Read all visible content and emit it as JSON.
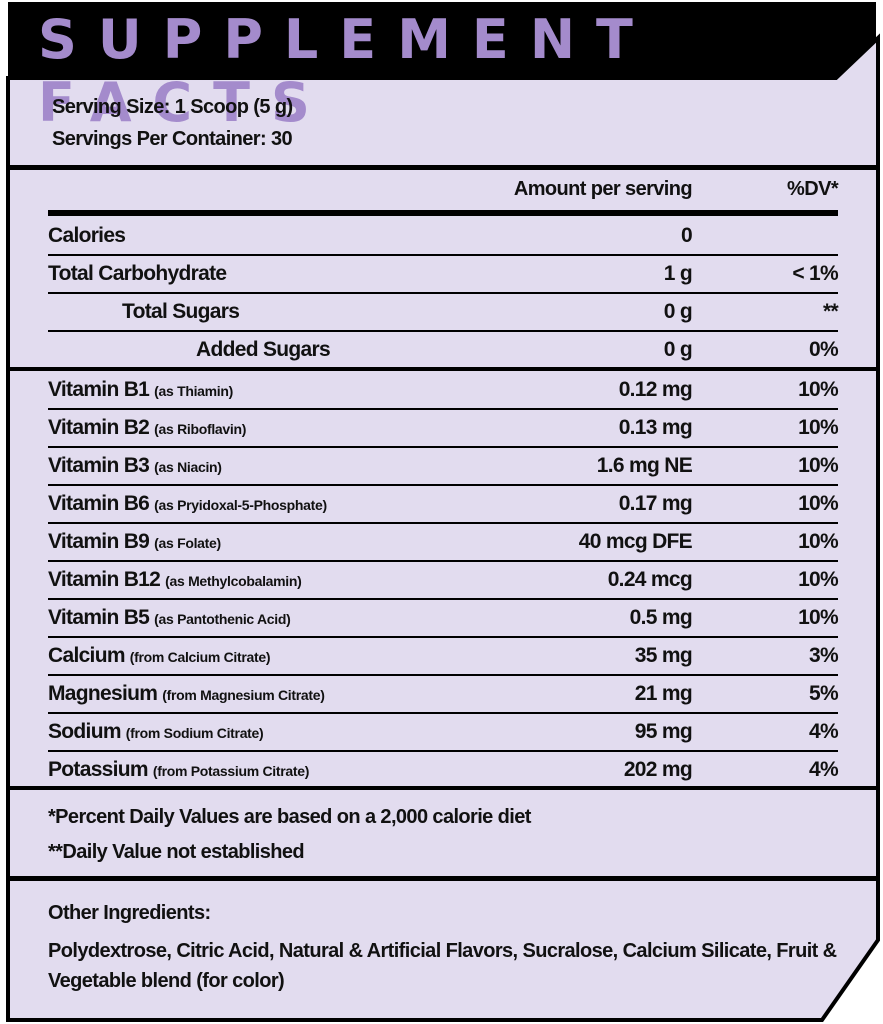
{
  "header": {
    "title": "SUPPLEMENT FACTS"
  },
  "serving": {
    "size": "Serving Size: 1 Scoop (5 g)",
    "per_container": "Servings Per Container: 30"
  },
  "table": {
    "columns": [
      "Amount per serving",
      "%DV*"
    ],
    "sections": [
      [
        {
          "name": "Calories",
          "amount": "0",
          "level": 0
        },
        {
          "name": "Total Carbohydrate",
          "amount": "1 g",
          "dv": "< 1%",
          "level": 0
        },
        {
          "name": "Total Sugars",
          "amount": "0 g",
          "dv": "**",
          "level": 1
        },
        {
          "name": "Added Sugars",
          "amount": "0 g",
          "dv": "0%",
          "level": 2
        }
      ],
      [
        {
          "name": "Vitamin B1",
          "note": "(as Thiamin)",
          "amount": "0.12 mg",
          "dv": "10%",
          "level": 0
        },
        {
          "name": "Vitamin B2",
          "note": "(as Riboflavin)",
          "amount": "0.13 mg",
          "dv": "10%",
          "level": 0
        },
        {
          "name": "Vitamin B3",
          "note": "(as Niacin)",
          "amount": "1.6 mg NE",
          "dv": "10%",
          "level": 0
        },
        {
          "name": "Vitamin B6",
          "note": "(as Pryidoxal-5-Phosphate)",
          "amount": "0.17 mg",
          "dv": "10%",
          "level": 0
        },
        {
          "name": "Vitamin B9",
          "note": "(as Folate)",
          "amount": "40 mcg DFE",
          "dv": "10%",
          "level": 0
        },
        {
          "name": "Vitamin B12",
          "note": "(as Methylcobalamin)",
          "amount": "0.24 mcg",
          "dv": "10%",
          "level": 0
        },
        {
          "name": "Vitamin B5",
          "note": "(as Pantothenic Acid)",
          "amount": "0.5 mg",
          "dv": "10%",
          "level": 0
        },
        {
          "name": "Calcium",
          "note": "(from Calcium Citrate)",
          "amount": "35 mg",
          "dv": "3%",
          "level": 0
        },
        {
          "name": "Magnesium",
          "note": "(from Magnesium Citrate)",
          "amount": "21 mg",
          "dv": "5%",
          "level": 0
        },
        {
          "name": "Sodium",
          "note": "(from Sodium Citrate)",
          "amount": "95 mg",
          "dv": "4%",
          "level": 0
        },
        {
          "name": "Potassium",
          "note": "(from Potassium Citrate)",
          "amount": "202 mg",
          "dv": "4%",
          "level": 0
        }
      ]
    ]
  },
  "footnotes": [
    "*Percent Daily Values are based on a 2,000 calorie diet",
    "**Daily Value not established"
  ],
  "other_ingredients": {
    "title": "Other Ingredients:",
    "text": "Polydextrose, Citric Acid, Natural & Artificial Flavors, Sucralose, Calcium Silicate, Fruit & Vegetable blend (for color)"
  }
}
